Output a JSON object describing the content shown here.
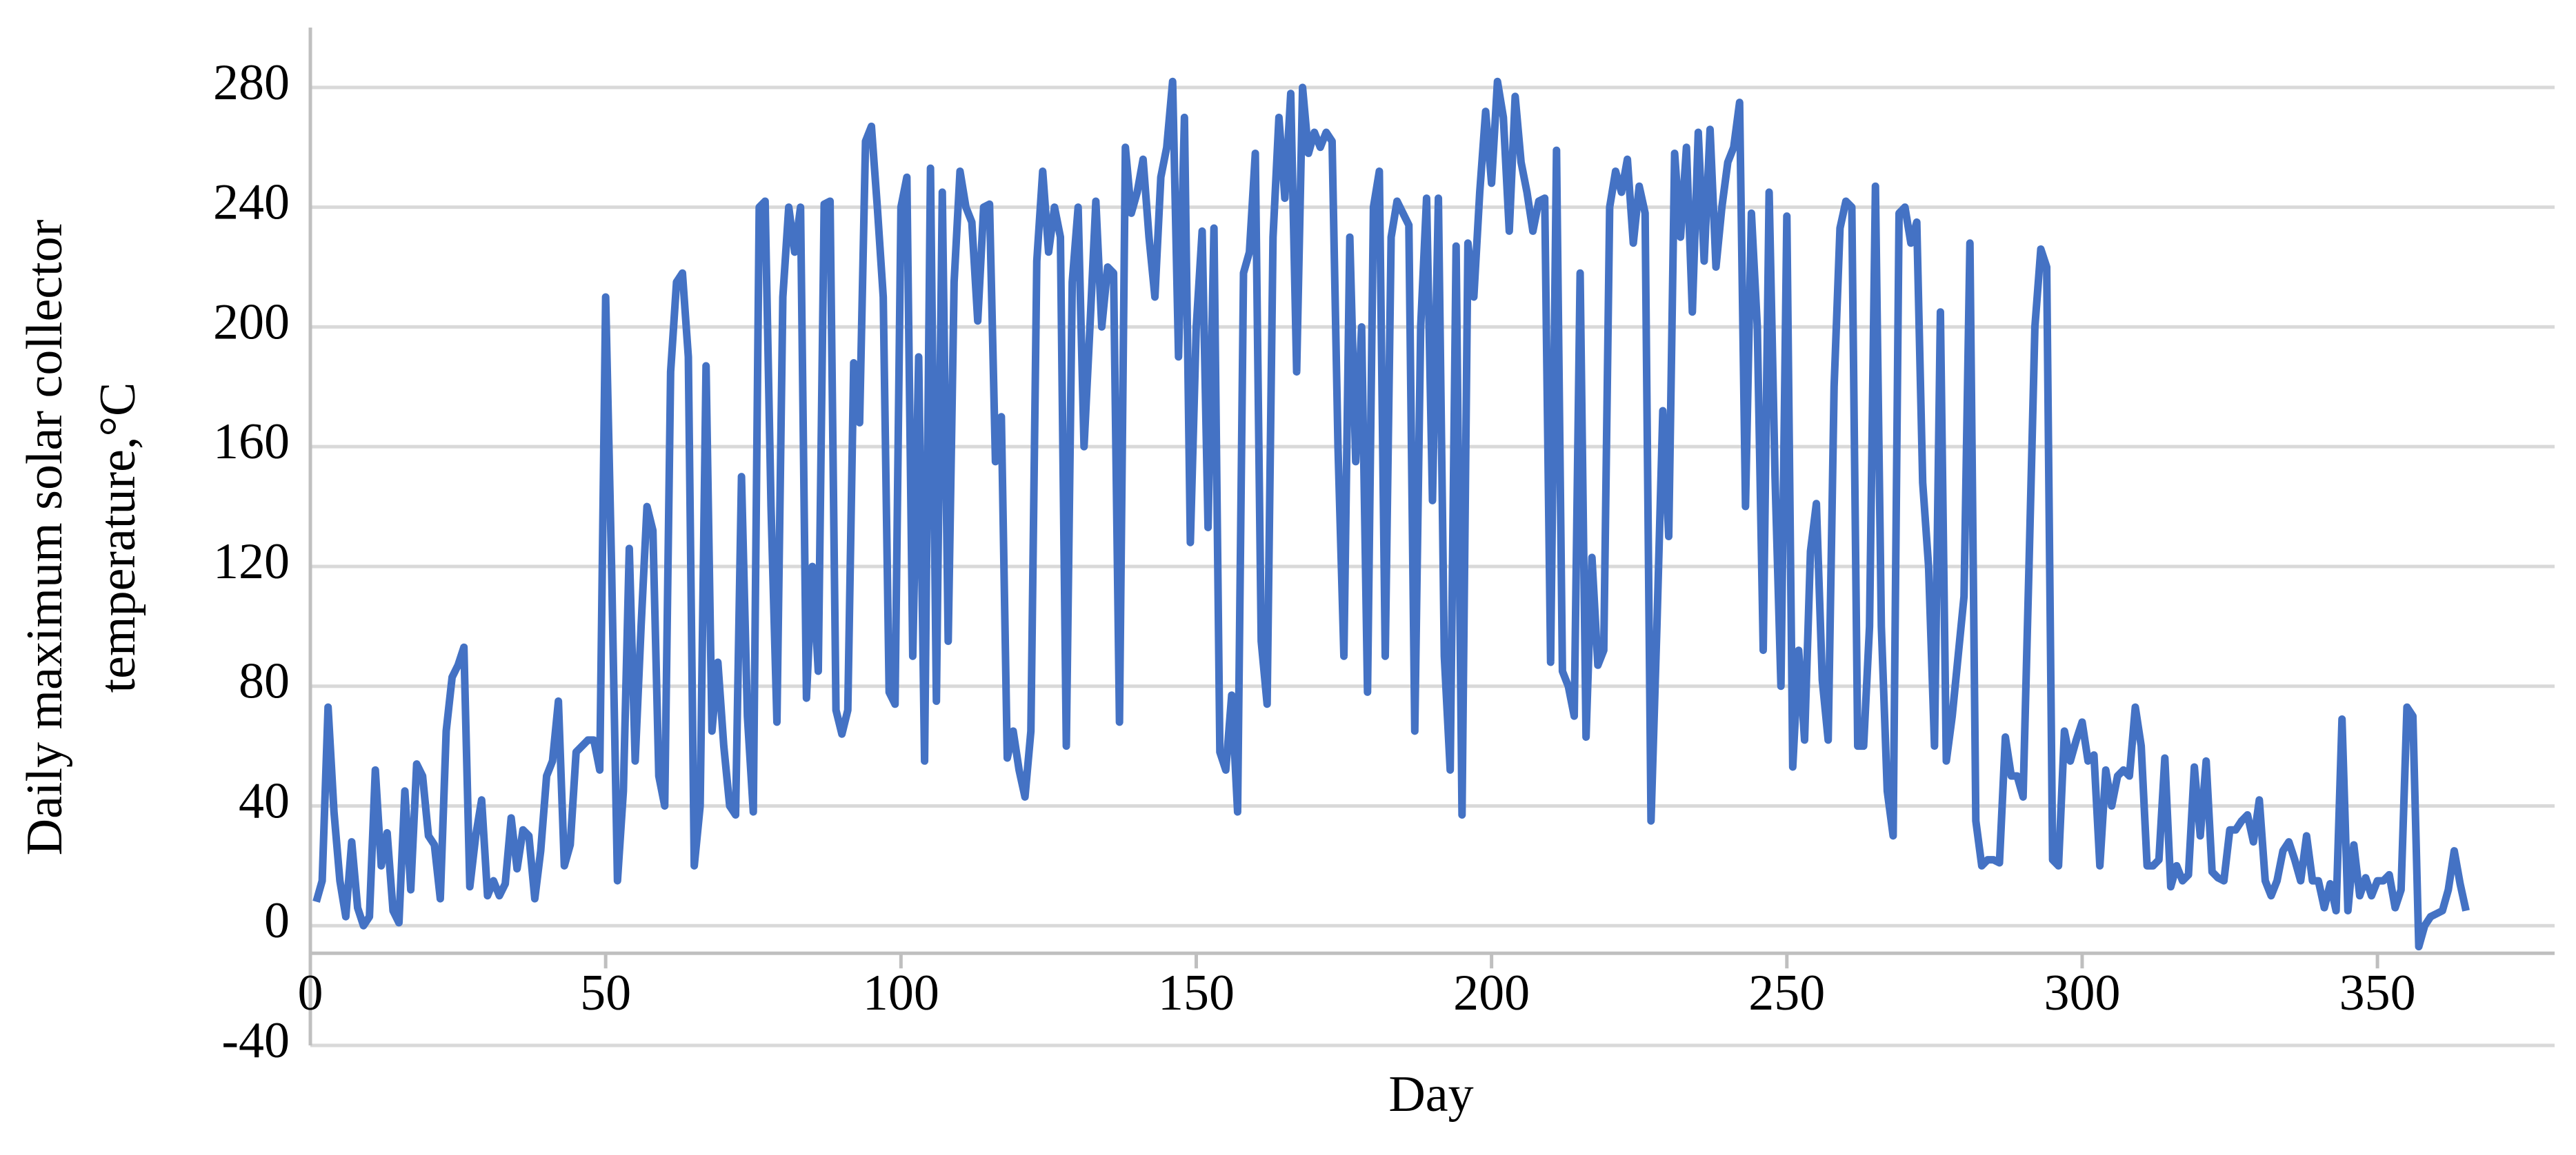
{
  "chart_data": {
    "type": "line",
    "xlabel": "Day",
    "ylabel": [
      "Daily maximum solar collector",
      "temperature,°C"
    ],
    "xlim": [
      0,
      380
    ],
    "xticks": [
      0,
      50,
      100,
      150,
      200,
      250,
      300,
      350
    ],
    "ylim": [
      -40,
      300
    ],
    "yticks": [
      -40,
      0,
      40,
      80,
      120,
      160,
      200,
      240,
      280
    ],
    "grid": true,
    "x": [
      1,
      2,
      3,
      4,
      5,
      6,
      7,
      8,
      9,
      10,
      11,
      12,
      13,
      14,
      15,
      16,
      17,
      18,
      19,
      20,
      21,
      22,
      23,
      24,
      25,
      26,
      27,
      28,
      29,
      30,
      31,
      32,
      33,
      34,
      35,
      36,
      37,
      38,
      39,
      40,
      41,
      42,
      43,
      44,
      45,
      46,
      47,
      48,
      49,
      50,
      51,
      52,
      53,
      54,
      55,
      56,
      57,
      58,
      59,
      60,
      61,
      62,
      63,
      64,
      65,
      66,
      67,
      68,
      69,
      70,
      71,
      72,
      73,
      74,
      75,
      76,
      77,
      78,
      79,
      80,
      81,
      82,
      83,
      84,
      85,
      86,
      87,
      88,
      89,
      90,
      91,
      92,
      93,
      94,
      95,
      96,
      97,
      98,
      99,
      100,
      101,
      102,
      103,
      104,
      105,
      106,
      107,
      108,
      109,
      110,
      111,
      112,
      113,
      114,
      115,
      116,
      117,
      118,
      119,
      120,
      121,
      122,
      123,
      124,
      125,
      126,
      127,
      128,
      129,
      130,
      131,
      132,
      133,
      134,
      135,
      136,
      137,
      138,
      139,
      140,
      141,
      142,
      143,
      144,
      145,
      146,
      147,
      148,
      149,
      150,
      151,
      152,
      153,
      154,
      155,
      156,
      157,
      158,
      159,
      160,
      161,
      162,
      163,
      164,
      165,
      166,
      167,
      168,
      169,
      170,
      171,
      172,
      173,
      174,
      175,
      176,
      177,
      178,
      179,
      180,
      181,
      182,
      183,
      184,
      185,
      186,
      187,
      188,
      189,
      190,
      191,
      192,
      193,
      194,
      195,
      196,
      197,
      198,
      199,
      200,
      201,
      202,
      203,
      204,
      205,
      206,
      207,
      208,
      209,
      210,
      211,
      212,
      213,
      214,
      215,
      216,
      217,
      218,
      219,
      220,
      221,
      222,
      223,
      224,
      225,
      226,
      227,
      228,
      229,
      230,
      231,
      232,
      233,
      234,
      235,
      236,
      237,
      238,
      239,
      240,
      241,
      242,
      243,
      244,
      245,
      246,
      247,
      248,
      249,
      250,
      251,
      252,
      253,
      254,
      255,
      256,
      257,
      258,
      259,
      260,
      261,
      262,
      263,
      264,
      265,
      266,
      267,
      268,
      269,
      270,
      271,
      272,
      273,
      274,
      275,
      276,
      277,
      278,
      279,
      280,
      281,
      282,
      283,
      284,
      285,
      286,
      287,
      288,
      289,
      290,
      291,
      292,
      293,
      294,
      295,
      296,
      297,
      298,
      299,
      300,
      301,
      302,
      303,
      304,
      305,
      306,
      307,
      308,
      309,
      310,
      311,
      312,
      313,
      314,
      315,
      316,
      317,
      318,
      319,
      320,
      321,
      322,
      323,
      324,
      325,
      326,
      327,
      328,
      329,
      330,
      331,
      332,
      333,
      334,
      335,
      336,
      337,
      338,
      339,
      340,
      341,
      342,
      343,
      344,
      345,
      346,
      347,
      348,
      349,
      350,
      351,
      352,
      353,
      354,
      355,
      356,
      357,
      358,
      359,
      360,
      361,
      362,
      363,
      364,
      365
    ],
    "series": [
      {
        "color": "#4472c4",
        "values": [
          8,
          15,
          73,
          38,
          15,
          3,
          28,
          6,
          0,
          3,
          52,
          20,
          31,
          5,
          1,
          45,
          12,
          54,
          50,
          30,
          27,
          9,
          65,
          83,
          87,
          93,
          13,
          30,
          42,
          10,
          15,
          10,
          14,
          36,
          19,
          32,
          30,
          9,
          25,
          50,
          55,
          75,
          20,
          27,
          58,
          60,
          62,
          62,
          52,
          210,
          120,
          15,
          45,
          126,
          55,
          100,
          140,
          132,
          50,
          40,
          185,
          215,
          218,
          190,
          20,
          40,
          187,
          65,
          88,
          60,
          40,
          37,
          150,
          70,
          38,
          240,
          242,
          140,
          68,
          210,
          240,
          225,
          240,
          76,
          120,
          85,
          241,
          242,
          72,
          64,
          72,
          188,
          168,
          262,
          267,
          240,
          210,
          78,
          74,
          240,
          250,
          90,
          190,
          55,
          253,
          75,
          245,
          95,
          215,
          252,
          240,
          235,
          202,
          240,
          241,
          155,
          170,
          56,
          65,
          52,
          43,
          65,
          222,
          252,
          225,
          240,
          230,
          60,
          215,
          240,
          160,
          200,
          242,
          200,
          220,
          218,
          68,
          260,
          238,
          245,
          256,
          230,
          210,
          250,
          260,
          282,
          190,
          270,
          128,
          200,
          232,
          133,
          233,
          58,
          52,
          77,
          38,
          218,
          225,
          258,
          95,
          74,
          230,
          270,
          243,
          278,
          185,
          280,
          258,
          265,
          260,
          265,
          262,
          160,
          90,
          230,
          155,
          200,
          78,
          240,
          252,
          90,
          230,
          242,
          238,
          234,
          65,
          200,
          243,
          142,
          243,
          90,
          52,
          227,
          37,
          228,
          210,
          245,
          272,
          248,
          282,
          270,
          232,
          277,
          255,
          245,
          232,
          242,
          243,
          88,
          259,
          85,
          80,
          70,
          218,
          63,
          123,
          87,
          92,
          240,
          252,
          245,
          256,
          228,
          247,
          238,
          35,
          100,
          172,
          130,
          258,
          230,
          260,
          205,
          265,
          222,
          266,
          220,
          240,
          255,
          260,
          275,
          140,
          238,
          200,
          92,
          245,
          150,
          80,
          237,
          53,
          92,
          62,
          125,
          141,
          82,
          62,
          180,
          233,
          242,
          240,
          60,
          60,
          100,
          247,
          100,
          45,
          30,
          238,
          240,
          228,
          235,
          148,
          120,
          60,
          205,
          55,
          70,
          90,
          110,
          228,
          35,
          20,
          22,
          22,
          21,
          63,
          50,
          50,
          43,
          120,
          200,
          226,
          220,
          22,
          20,
          65,
          55,
          62,
          68,
          55,
          57,
          20,
          52,
          40,
          50,
          52,
          50,
          73,
          60,
          20,
          20,
          22,
          56,
          13,
          20,
          15,
          17,
          53,
          30,
          55,
          18,
          16,
          15,
          32,
          32,
          35,
          37,
          28,
          42,
          15,
          10,
          15,
          25,
          28,
          22,
          15,
          30,
          15,
          15,
          6,
          14,
          5,
          69,
          5,
          27,
          10,
          16,
          10,
          15,
          15,
          17,
          6,
          12,
          73,
          70,
          -7,
          0,
          3,
          4,
          5,
          12,
          25,
          14,
          5
        ]
      }
    ]
  }
}
